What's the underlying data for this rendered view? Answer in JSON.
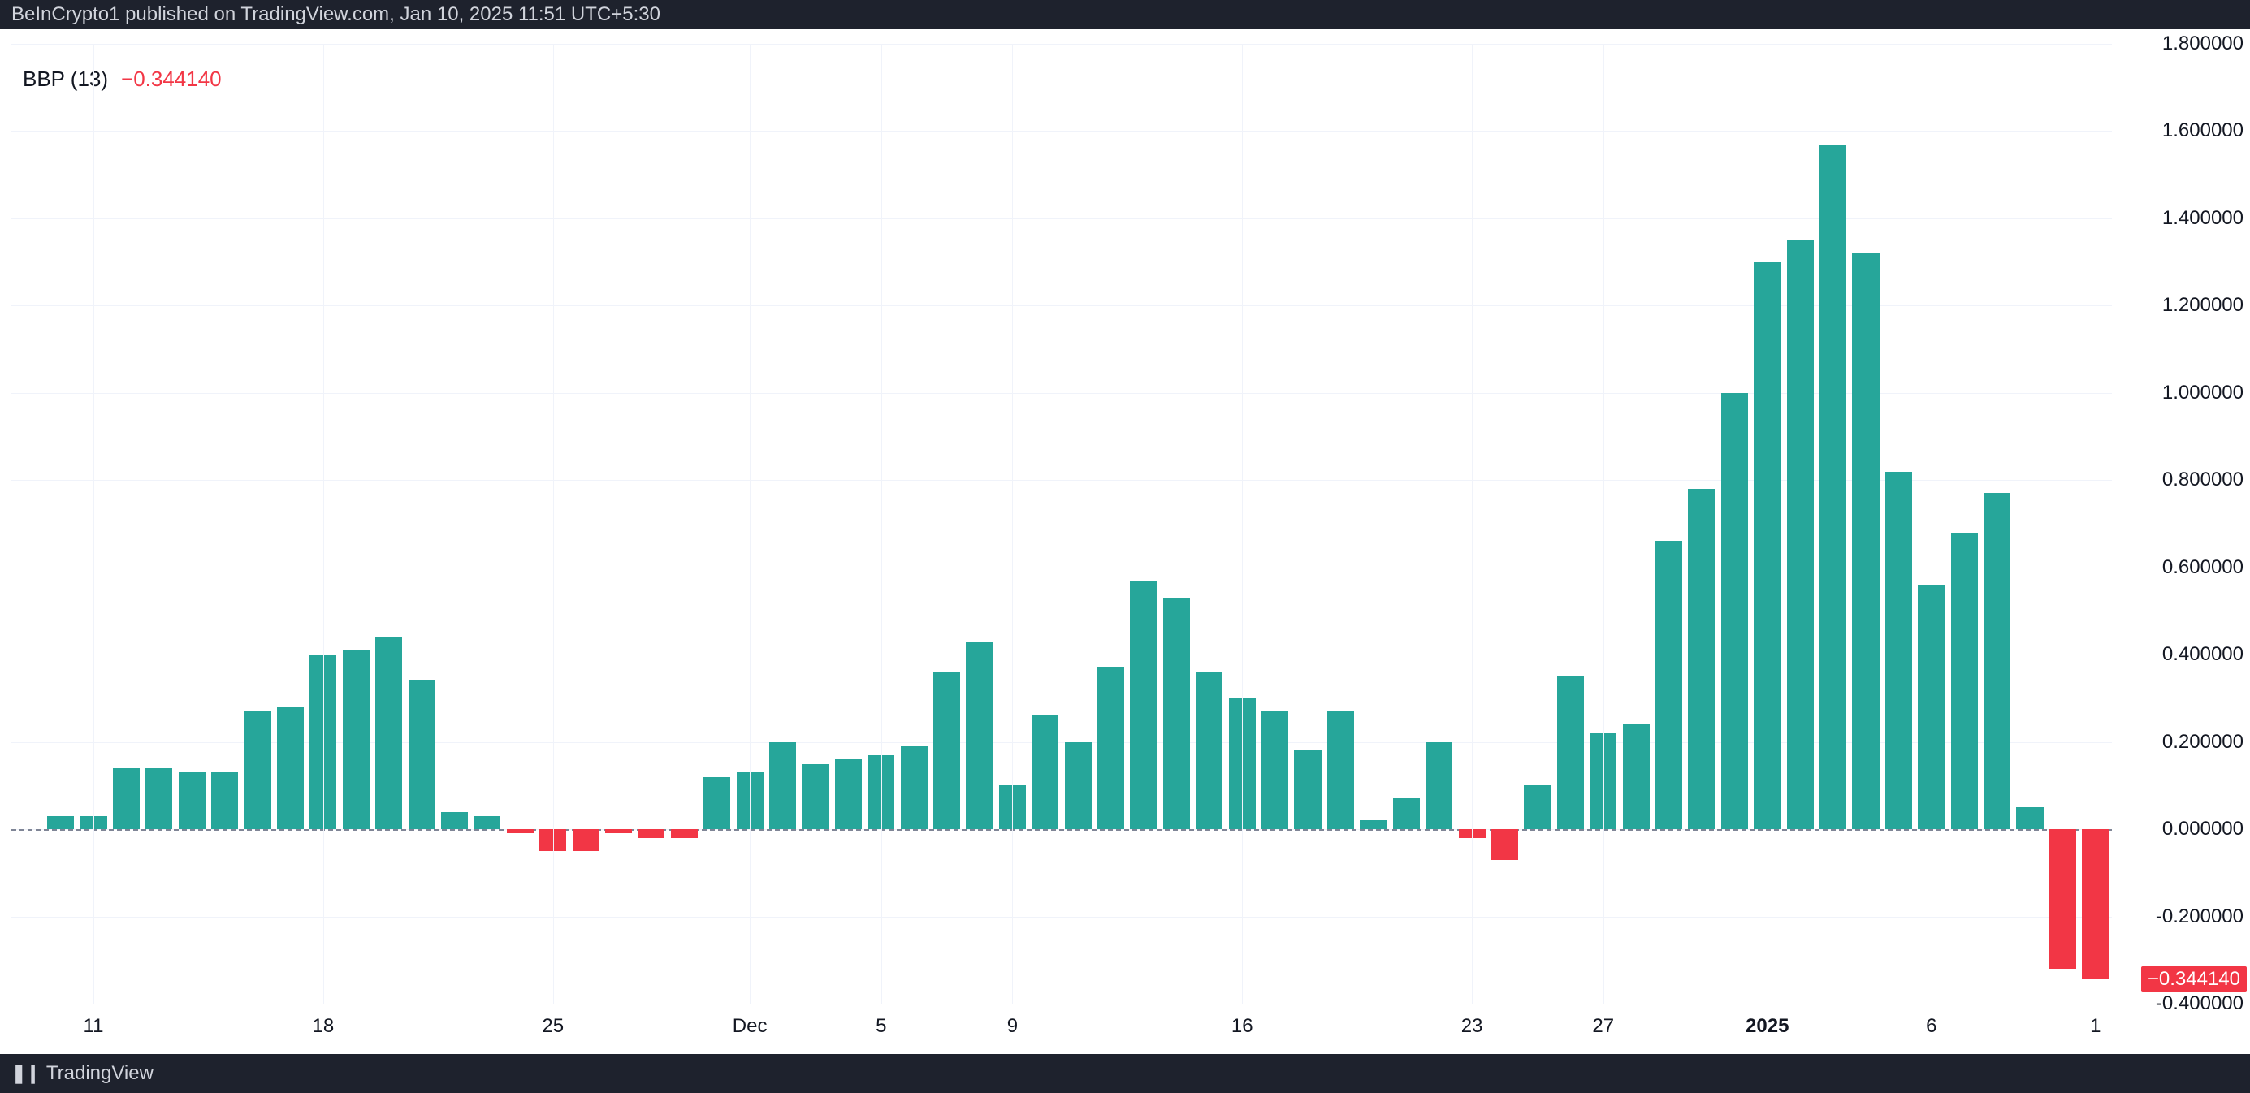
{
  "header": {
    "publish_text": "BeInCrypto1 published on TradingView.com, Jan 10, 2025 11:51 UTC+5:30"
  },
  "footer": {
    "logo_glyph": "❚❙",
    "brand": "TradingView"
  },
  "legend": {
    "name": "BBP (13)",
    "value": "−0.344140",
    "value_color": "#f23645"
  },
  "chart": {
    "type": "bar",
    "background_color": "#ffffff",
    "grid_color": "#f0f3fa",
    "zero_line_color": "#7f8596",
    "positive_color": "#26a69a",
    "negative_color": "#f23645",
    "bar_gap_ratio": 0.18,
    "y": {
      "min": -0.4,
      "max": 1.8,
      "tick_step": 0.2,
      "ticks": [
        "1.800000",
        "1.600000",
        "1.400000",
        "1.200000",
        "1.000000",
        "0.800000",
        "0.600000",
        "0.400000",
        "0.200000",
        "0.000000",
        "-0.200000",
        "-0.400000"
      ],
      "tick_values": [
        1.8,
        1.6,
        1.4,
        1.2,
        1.0,
        0.8,
        0.6,
        0.4,
        0.2,
        0.0,
        -0.2,
        -0.4
      ],
      "flag": {
        "label": "−0.344140",
        "value": -0.34414,
        "bg": "#f23645"
      }
    },
    "x": {
      "ticks": [
        {
          "idx": 2,
          "label": "11",
          "bold": false
        },
        {
          "idx": 9,
          "label": "18",
          "bold": false
        },
        {
          "idx": 16,
          "label": "25",
          "bold": false
        },
        {
          "idx": 22,
          "label": "Dec",
          "bold": false
        },
        {
          "idx": 26,
          "label": "5",
          "bold": false
        },
        {
          "idx": 30,
          "label": "9",
          "bold": false
        },
        {
          "idx": 37,
          "label": "16",
          "bold": false
        },
        {
          "idx": 44,
          "label": "23",
          "bold": false
        },
        {
          "idx": 48,
          "label": "27",
          "bold": false
        },
        {
          "idx": 53,
          "label": "2025",
          "bold": true
        },
        {
          "idx": 58,
          "label": "6",
          "bold": false
        },
        {
          "idx": 63,
          "label": "1",
          "bold": false
        }
      ]
    },
    "values": [
      0.0,
      0.03,
      0.03,
      0.14,
      0.14,
      0.13,
      0.13,
      0.27,
      0.28,
      0.4,
      0.41,
      0.44,
      0.34,
      0.04,
      0.03,
      -0.01,
      -0.05,
      -0.05,
      -0.01,
      -0.02,
      -0.02,
      0.12,
      0.13,
      0.2,
      0.15,
      0.16,
      0.17,
      0.19,
      0.36,
      0.43,
      0.1,
      0.26,
      0.2,
      0.37,
      0.57,
      0.53,
      0.36,
      0.3,
      0.27,
      0.18,
      0.27,
      0.02,
      0.07,
      0.2,
      -0.02,
      -0.07,
      0.1,
      0.35,
      0.22,
      0.24,
      0.66,
      0.78,
      1.0,
      1.3,
      1.35,
      1.57,
      1.32,
      0.82,
      0.56,
      0.68,
      0.77,
      0.05,
      -0.32,
      -0.344
    ]
  }
}
